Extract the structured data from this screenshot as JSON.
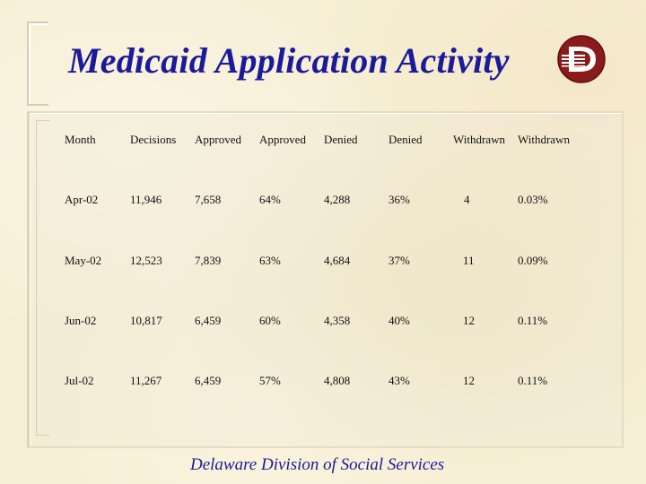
{
  "slide": {
    "title": "Medicaid Application Activity",
    "footer": "Delaware Division of Social Services"
  },
  "colors": {
    "title": "#1a1a9a",
    "logo": "#8b1a1a",
    "background": "#f7efd5"
  },
  "logo_icon": "dss-logo-icon",
  "table": {
    "headers": [
      "Month",
      "Decisions",
      "Approved",
      "Approved",
      "Denied",
      "Denied",
      "Withdrawn",
      "Withdrawn"
    ],
    "rows": [
      [
        "Apr-02",
        "11,946",
        "7,658",
        "64%",
        "4,288",
        "36%",
        "4",
        "0.03%"
      ],
      [
        "May-02",
        "12,523",
        "7,839",
        "63%",
        "4,684",
        "37%",
        "11",
        "0.09%"
      ],
      [
        "Jun-02",
        "10,817",
        "6,459",
        "60%",
        "4,358",
        "40%",
        "12",
        "0.11%"
      ],
      [
        "Jul-02",
        "11,267",
        "6,459",
        "57%",
        "4,808",
        "43%",
        "12",
        "0.11%"
      ]
    ]
  }
}
